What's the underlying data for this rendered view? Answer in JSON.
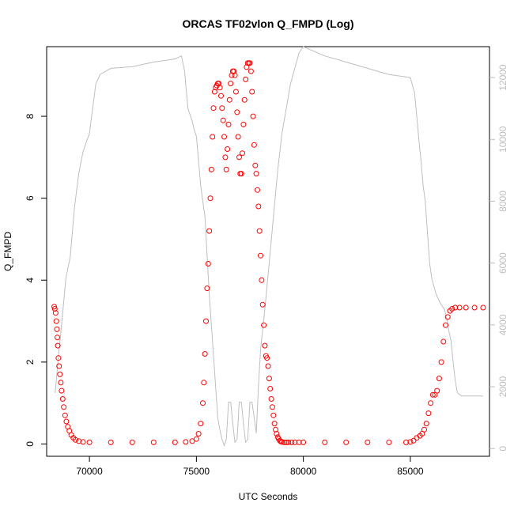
{
  "chart_data": {
    "type": "scatter",
    "title": "ORCAS TF02vlon Q_FMPD (Log)",
    "xlabel": "UTC Seconds",
    "ylabel": "Q_FMPD",
    "xlim": [
      68000,
      88700
    ],
    "ylim": [
      -0.3,
      9.7
    ],
    "y2lim": [
      -250,
      13000
    ],
    "xticks": [
      "70000",
      "75000",
      "80000",
      "85000"
    ],
    "xtick_values": [
      70000,
      75000,
      80000,
      85000
    ],
    "yticks": [
      "0",
      "2",
      "4",
      "6",
      "8"
    ],
    "ytick_values": [
      0,
      2,
      4,
      6,
      8
    ],
    "y2ticks": [
      "0",
      "2000",
      "4000",
      "6000",
      "8000",
      "10000",
      "12000"
    ],
    "y2tick_values": [
      0,
      2000,
      4000,
      6000,
      8000,
      10000,
      12000
    ],
    "grid": false,
    "colors": {
      "points": "#ff0000",
      "altitude": "#bebebe",
      "axis": "#000000"
    },
    "series": [
      {
        "style": "points",
        "axis": "left",
        "color": "#ff0000",
        "x": [
          68350,
          68380,
          68420,
          68450,
          68480,
          68500,
          68520,
          68550,
          68580,
          68620,
          68660,
          68700,
          68750,
          68800,
          68860,
          68920,
          68990,
          69060,
          69150,
          69250,
          69350,
          69500,
          69700,
          70000,
          71000,
          72000,
          73000,
          74000,
          74500,
          74800,
          75000,
          75100,
          75200,
          75300,
          75350,
          75400,
          75450,
          75500,
          75550,
          75600,
          75650,
          75700,
          75750,
          75800,
          75850,
          75900,
          75950,
          76000,
          76050,
          76100,
          76150,
          76200,
          76250,
          76300,
          76350,
          76400,
          76450,
          76500,
          76550,
          76600,
          76650,
          76700,
          76750,
          76800,
          76850,
          76900,
          76950,
          77000,
          77050,
          77100,
          77150,
          77200,
          77250,
          77300,
          77350,
          77400,
          77450,
          77500,
          77550,
          77600,
          77650,
          77700,
          77750,
          77800,
          77850,
          77900,
          77950,
          78000,
          78050,
          78100,
          78150,
          78200,
          78250,
          78300,
          78350,
          78400,
          78450,
          78500,
          78550,
          78600,
          78650,
          78700,
          78750,
          78800,
          78850,
          78900,
          78950,
          79000,
          79100,
          79200,
          79300,
          79450,
          79600,
          79800,
          80000,
          81000,
          82000,
          83000,
          84000,
          84800,
          85000,
          85150,
          85300,
          85450,
          85550,
          85650,
          85750,
          85850,
          85950,
          86050,
          86150,
          86250,
          86350,
          86450,
          86550,
          86650,
          86750,
          86850,
          86950,
          87100,
          87300,
          87600,
          88000,
          88400
        ],
        "y": [
          3.35,
          3.3,
          3.2,
          3.0,
          2.8,
          2.6,
          2.4,
          2.1,
          1.9,
          1.7,
          1.5,
          1.3,
          1.1,
          0.9,
          0.7,
          0.55,
          0.42,
          0.32,
          0.22,
          0.15,
          0.1,
          0.07,
          0.05,
          0.04,
          0.04,
          0.04,
          0.04,
          0.04,
          0.05,
          0.07,
          0.12,
          0.25,
          0.5,
          1.0,
          1.5,
          2.2,
          3.0,
          3.8,
          4.4,
          5.2,
          6.0,
          6.7,
          7.5,
          8.2,
          8.6,
          8.7,
          8.75,
          8.8,
          8.8,
          8.7,
          8.5,
          8.2,
          7.9,
          7.5,
          7.0,
          6.7,
          7.2,
          7.8,
          8.4,
          8.8,
          9.0,
          9.1,
          9.1,
          9.0,
          8.6,
          8.1,
          7.5,
          7.0,
          6.6,
          6.6,
          7.1,
          7.8,
          8.4,
          8.9,
          9.2,
          9.3,
          9.3,
          9.3,
          9.1,
          8.6,
          8.0,
          7.3,
          6.8,
          6.6,
          6.2,
          5.8,
          5.2,
          4.6,
          4.0,
          3.4,
          2.9,
          2.4,
          2.15,
          2.1,
          1.9,
          1.6,
          1.35,
          1.1,
          0.9,
          0.7,
          0.5,
          0.35,
          0.25,
          0.17,
          0.12,
          0.08,
          0.06,
          0.05,
          0.04,
          0.04,
          0.04,
          0.04,
          0.04,
          0.04,
          0.04,
          0.04,
          0.04,
          0.04,
          0.04,
          0.04,
          0.05,
          0.08,
          0.15,
          0.2,
          0.25,
          0.35,
          0.5,
          0.75,
          1.0,
          1.2,
          1.2,
          1.3,
          1.6,
          2.0,
          2.5,
          2.9,
          3.1,
          3.25,
          3.3,
          3.33,
          3.33,
          3.33,
          3.33,
          3.33
        ]
      },
      {
        "style": "line",
        "axis": "right",
        "color": "#bebebe",
        "x": [
          68400,
          68550,
          68700,
          68900,
          69100,
          69300,
          69500,
          69700,
          69850,
          70000,
          70300,
          70500,
          71000,
          72000,
          73000,
          74000,
          74300,
          74450,
          74600,
          74700,
          74800,
          74900,
          75000,
          75200,
          75400,
          75600,
          75700,
          75800,
          75900,
          76000,
          76100,
          76200,
          76300,
          76400,
          76500,
          76600,
          76700,
          76800,
          76900,
          77000,
          77100,
          77200,
          77300,
          77400,
          77500,
          77600,
          77700,
          77800,
          77900,
          78000,
          78200,
          78400,
          78600,
          78800,
          79000,
          79200,
          79400,
          79600,
          79800,
          80000,
          81000,
          82000,
          83000,
          84000,
          85000,
          85200,
          85400,
          85500,
          85600,
          85700,
          85800,
          85900,
          86000,
          86200,
          86400,
          86600,
          86700,
          86800,
          86900,
          87000,
          87100,
          87200,
          87400,
          87600,
          88000,
          88400
        ],
        "y": [
          1800,
          3000,
          4000,
          5500,
          6200,
          7800,
          8900,
          9600,
          9900,
          10200,
          11800,
          12100,
          12300,
          12350,
          12500,
          12600,
          12700,
          12200,
          11000,
          10800,
          10600,
          10300,
          10100,
          8500,
          7500,
          5000,
          4000,
          3000,
          2000,
          1000,
          600,
          300,
          100,
          300,
          1500,
          1500,
          800,
          200,
          300,
          1500,
          1500,
          800,
          200,
          300,
          1500,
          1500,
          1000,
          500,
          2000,
          3200,
          4500,
          6000,
          7500,
          9000,
          10200,
          11000,
          11800,
          12300,
          12800,
          13000,
          12700,
          12500,
          12300,
          12100,
          12000,
          11500,
          10000,
          9300,
          8500,
          8000,
          7000,
          6000,
          5500,
          5000,
          4700,
          4500,
          4200,
          3800,
          3500,
          2800,
          2200,
          1800,
          1700,
          1700,
          1700,
          1700
        ]
      }
    ]
  }
}
